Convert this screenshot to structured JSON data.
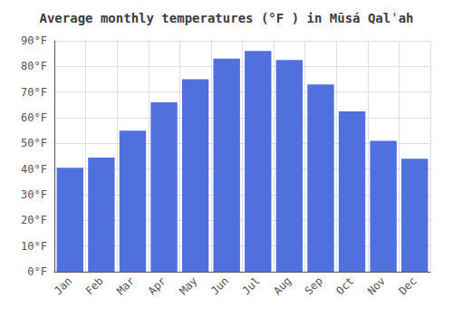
{
  "chart_data": {
    "type": "bar",
    "title": "Average monthly temperatures (°F ) in Mūsá Qalʿah",
    "categories": [
      "Jan",
      "Feb",
      "Mar",
      "Apr",
      "May",
      "Jun",
      "Jul",
      "Aug",
      "Sep",
      "Oct",
      "Nov",
      "Dec"
    ],
    "values": [
      40.5,
      44.5,
      55,
      66,
      75,
      83,
      86,
      82.5,
      73,
      62.5,
      51,
      44
    ],
    "ylim": [
      0,
      90
    ],
    "yticks": [
      {
        "value": 0,
        "label": "0°F"
      },
      {
        "value": 10,
        "label": "10°F"
      },
      {
        "value": 20,
        "label": "20°F"
      },
      {
        "value": 30,
        "label": "30°F"
      },
      {
        "value": 40,
        "label": "40°F"
      },
      {
        "value": 50,
        "label": "50°F"
      },
      {
        "value": 60,
        "label": "60°F"
      },
      {
        "value": 70,
        "label": "70°F"
      },
      {
        "value": 80,
        "label": "80°F"
      },
      {
        "value": 90,
        "label": "90°F"
      }
    ],
    "grid": true
  }
}
